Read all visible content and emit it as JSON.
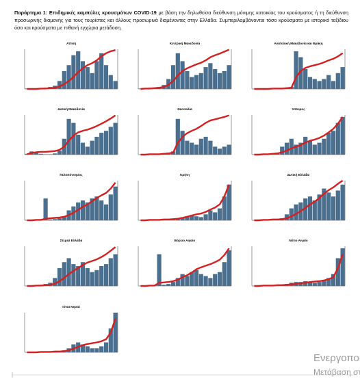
{
  "header": {
    "lead": "Παράρτημα 1: Επιδημικές καμπύλες κρουσμάτων COVID-19",
    "text": "με βάση την δηλωθείσα διεύθυνση μόνιμης κατοικίας του κρούσματος ή τη διεύθυνση προσωρινής διαμονής για τους τουρίστες και άλλους προσωρινά διαμένοντες στην Ελλάδα. Συμπεριλαμβάνονται τόσο κρούσματα με ιστορικό ταξίδιου όσο και κρούσματα με πιθανή εγχώρια μετάδοση."
  },
  "watermark": {
    "line1": "Ενεργοποίηση Windows",
    "line2": "Μετάβαση στις Ρυθμίσεις"
  },
  "chart_data": [
    {
      "type": "bar",
      "title": "Αττική",
      "ylim": [
        0,
        100
      ],
      "y2lim": [
        0,
        100
      ],
      "series": [
        {
          "color": "#4b6f8e",
          "values": [
            1,
            1,
            1,
            2,
            3,
            5,
            8,
            20,
            45,
            60,
            85,
            95,
            70,
            55,
            40,
            70,
            90,
            60,
            35,
            20
          ]
        },
        {
          "color": "#d42020",
          "axis": "y2",
          "values": [
            0,
            0,
            0,
            1,
            1,
            2,
            3,
            6,
            12,
            20,
            30,
            42,
            52,
            60,
            65,
            72,
            82,
            90,
            95,
            98
          ]
        }
      ]
    },
    {
      "type": "bar",
      "title": "Κεντρική Μακεδονία",
      "ylim": [
        0,
        100
      ],
      "y2lim": [
        0,
        100
      ],
      "series": [
        {
          "color": "#4b6f8e",
          "values": [
            1,
            2,
            3,
            2,
            5,
            10,
            25,
            60,
            90,
            70,
            45,
            30,
            35,
            40,
            55,
            65,
            50,
            40,
            45,
            60
          ]
        },
        {
          "color": "#d42020",
          "axis": "y2",
          "values": [
            0,
            1,
            1,
            2,
            3,
            5,
            10,
            20,
            34,
            45,
            52,
            57,
            62,
            66,
            72,
            80,
            85,
            89,
            94,
            99
          ]
        }
      ]
    },
    {
      "type": "bar",
      "title": "Ανατολική Μακεδονία και Θράκη",
      "ylim": [
        0,
        100
      ],
      "y2lim": [
        0,
        100
      ],
      "series": [
        {
          "color": "#4b6f8e",
          "values": [
            0,
            0,
            1,
            1,
            1,
            2,
            2,
            3,
            5,
            95,
            80,
            50,
            30,
            25,
            20,
            25,
            35,
            20,
            40,
            55
          ]
        },
        {
          "color": "#d42020",
          "axis": "y2",
          "values": [
            0,
            0,
            0,
            0,
            1,
            1,
            1,
            2,
            3,
            30,
            45,
            53,
            57,
            60,
            63,
            67,
            72,
            76,
            82,
            90
          ]
        }
      ]
    },
    {
      "type": "bar",
      "title": "Δυτική Μακεδονία",
      "ylim": [
        0,
        100
      ],
      "y2lim": [
        0,
        100
      ],
      "series": [
        {
          "color": "#4b6f8e",
          "values": [
            2,
            8,
            5,
            2,
            1,
            1,
            3,
            10,
            40,
            90,
            80,
            50,
            30,
            20,
            35,
            45,
            55,
            60,
            70,
            80
          ]
        },
        {
          "color": "#d42020",
          "axis": "y2",
          "values": [
            1,
            4,
            6,
            7,
            7,
            8,
            9,
            12,
            20,
            35,
            48,
            56,
            60,
            63,
            67,
            72,
            78,
            84,
            91,
            99
          ]
        }
      ]
    },
    {
      "type": "bar",
      "title": "Θεσσαλία",
      "ylim": [
        0,
        100
      ],
      "y2lim": [
        0,
        100
      ],
      "series": [
        {
          "color": "#4b6f8e",
          "values": [
            0,
            1,
            1,
            1,
            2,
            3,
            5,
            8,
            90,
            60,
            35,
            30,
            25,
            40,
            45,
            35,
            20,
            15,
            20,
            25
          ]
        },
        {
          "color": "#d42020",
          "axis": "y2",
          "values": [
            0,
            0,
            1,
            1,
            1,
            2,
            3,
            5,
            30,
            45,
            54,
            60,
            65,
            72,
            80,
            86,
            89,
            92,
            95,
            99
          ]
        }
      ]
    },
    {
      "type": "bar",
      "title": "Ήπειρος",
      "ylim": [
        0,
        100
      ],
      "y2lim": [
        0,
        100
      ],
      "series": [
        {
          "color": "#4b6f8e",
          "values": [
            0,
            1,
            1,
            2,
            3,
            5,
            20,
            30,
            40,
            25,
            30,
            45,
            35,
            25,
            30,
            40,
            55,
            60,
            80,
            95
          ]
        },
        {
          "color": "#d42020",
          "axis": "y2",
          "values": [
            0,
            0,
            1,
            1,
            2,
            3,
            6,
            10,
            16,
            20,
            24,
            30,
            35,
            38,
            42,
            48,
            56,
            65,
            78,
            95
          ]
        }
      ]
    },
    {
      "type": "bar",
      "title": "Πελοπόννησος",
      "ylim": [
        0,
        100
      ],
      "y2lim": [
        0,
        100
      ],
      "series": [
        {
          "color": "#4b6f8e",
          "values": [
            1,
            1,
            1,
            2,
            55,
            2,
            3,
            5,
            10,
            25,
            35,
            45,
            50,
            45,
            55,
            60,
            50,
            40,
            65,
            85
          ]
        },
        {
          "color": "#d42020",
          "axis": "y2",
          "values": [
            0,
            0,
            1,
            1,
            4,
            5,
            6,
            7,
            9,
            13,
            19,
            26,
            34,
            40,
            48,
            56,
            63,
            69,
            80,
            95
          ]
        }
      ]
    },
    {
      "type": "bar",
      "title": "Κρήτη",
      "ylim": [
        0,
        100
      ],
      "y2lim": [
        0,
        100
      ],
      "series": [
        {
          "color": "#4b6f8e",
          "values": [
            0,
            1,
            1,
            1,
            2,
            2,
            3,
            3,
            5,
            8,
            10,
            12,
            10,
            8,
            15,
            25,
            20,
            30,
            60,
            90
          ]
        },
        {
          "color": "#d42020",
          "axis": "y2",
          "values": [
            0,
            0,
            1,
            1,
            1,
            2,
            2,
            3,
            4,
            6,
            9,
            12,
            15,
            17,
            21,
            27,
            32,
            40,
            60,
            90
          ]
        }
      ]
    },
    {
      "type": "bar",
      "title": "Δυτική Ελλάδα",
      "ylim": [
        0,
        100
      ],
      "y2lim": [
        0,
        100
      ],
      "series": [
        {
          "color": "#4b6f8e",
          "values": [
            0,
            1,
            1,
            2,
            3,
            3,
            5,
            15,
            30,
            40,
            45,
            55,
            60,
            50,
            65,
            80,
            70,
            60,
            75,
            90
          ]
        },
        {
          "color": "#d42020",
          "axis": "y2",
          "values": [
            0,
            0,
            1,
            1,
            2,
            2,
            3,
            5,
            10,
            16,
            23,
            31,
            40,
            47,
            56,
            67,
            76,
            83,
            92,
            100
          ]
        }
      ]
    },
    {
      "type": "bar",
      "title": "Στερεά Ελλάδα",
      "ylim": [
        0,
        100
      ],
      "y2lim": [
        0,
        100
      ],
      "series": [
        {
          "color": "#4b6f8e",
          "values": [
            0,
            1,
            2,
            3,
            5,
            8,
            20,
            45,
            60,
            70,
            55,
            50,
            60,
            45,
            35,
            40,
            50,
            55,
            70,
            80
          ]
        },
        {
          "color": "#d42020",
          "axis": "y2",
          "values": [
            0,
            0,
            1,
            1,
            2,
            3,
            6,
            12,
            20,
            30,
            38,
            45,
            53,
            59,
            63,
            67,
            73,
            80,
            89,
            98
          ]
        }
      ]
    },
    {
      "type": "bar",
      "title": "Βόρειο Αιγαίο",
      "ylim": [
        0,
        100
      ],
      "y2lim": [
        0,
        100
      ],
      "series": [
        {
          "color": "#4b6f8e",
          "values": [
            0,
            1,
            1,
            2,
            80,
            3,
            5,
            10,
            20,
            30,
            25,
            35,
            40,
            30,
            25,
            20,
            30,
            35,
            60,
            90
          ]
        },
        {
          "color": "#d42020",
          "axis": "y2",
          "values": [
            0,
            0,
            1,
            1,
            8,
            9,
            10,
            12,
            16,
            22,
            27,
            34,
            42,
            47,
            51,
            55,
            60,
            66,
            78,
            95
          ]
        }
      ]
    },
    {
      "type": "bar",
      "title": "Νότιο Αιγαίο",
      "ylim": [
        0,
        100
      ],
      "y2lim": [
        0,
        100
      ],
      "series": [
        {
          "color": "#4b6f8e",
          "values": [
            0,
            1,
            1,
            2,
            2,
            3,
            3,
            5,
            8,
            10,
            10,
            12,
            10,
            8,
            10,
            15,
            20,
            30,
            70,
            95
          ]
        },
        {
          "color": "#d42020",
          "axis": "y2",
          "values": [
            0,
            0,
            1,
            1,
            1,
            2,
            2,
            3,
            4,
            5,
            7,
            8,
            10,
            11,
            12,
            14,
            17,
            22,
            45,
            80
          ]
        }
      ]
    },
    {
      "type": "bar",
      "title": "Ιόνια Νησιά",
      "ylim": [
        0,
        100
      ],
      "y2lim": [
        0,
        100
      ],
      "series": [
        {
          "color": "#4b6f8e",
          "values": [
            0,
            0,
            1,
            1,
            1,
            2,
            2,
            3,
            5,
            10,
            20,
            25,
            20,
            15,
            10,
            10,
            15,
            25,
            60,
            100
          ]
        },
        {
          "color": "#d42020",
          "axis": "y2",
          "values": [
            0,
            0,
            0,
            1,
            1,
            1,
            2,
            2,
            3,
            5,
            9,
            14,
            18,
            21,
            23,
            25,
            28,
            33,
            50,
            85
          ]
        }
      ]
    }
  ]
}
